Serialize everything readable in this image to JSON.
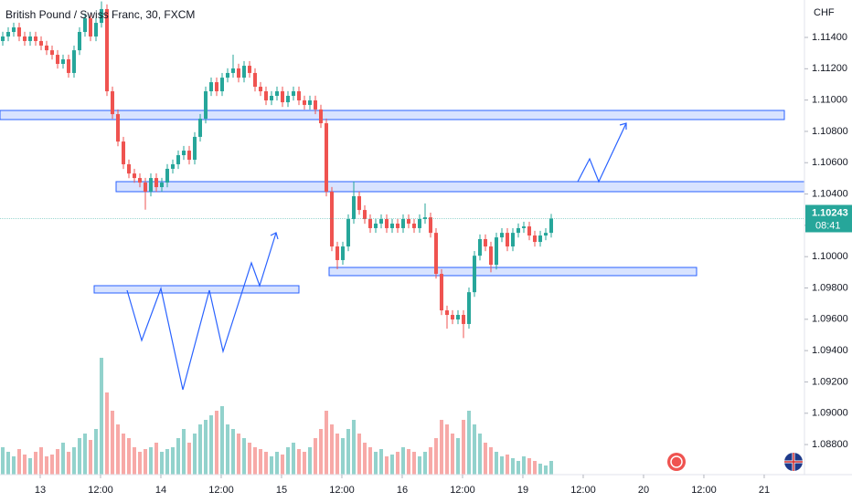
{
  "chart_data": {
    "type": "candlestick",
    "title": "British Pound / Swiss Franc, 30, FXCM",
    "currency": "CHF",
    "countdown": "08:41",
    "up_color": "#26a69a",
    "down_color": "#ef5350",
    "ylim": [
      1.08608,
      1.11639
    ],
    "yticks": [
      {
        "value": 1.114,
        "label": "1.11400"
      },
      {
        "value": 1.112,
        "label": "1.11200"
      },
      {
        "value": 1.11,
        "label": "1.11000"
      },
      {
        "value": 1.108,
        "label": "1.10800"
      },
      {
        "value": 1.106,
        "label": "1.10600"
      },
      {
        "value": 1.104,
        "label": "1.10400"
      },
      {
        "value": 1.102,
        "label": "1.10200"
      },
      {
        "value": 1.1,
        "label": "1.10000"
      },
      {
        "value": 1.098,
        "label": "1.09800"
      },
      {
        "value": 1.096,
        "label": "1.09600"
      },
      {
        "value": 1.094,
        "label": "1.09400"
      },
      {
        "value": 1.092,
        "label": "1.09200"
      },
      {
        "value": 1.09,
        "label": "1.09000"
      },
      {
        "value": 1.088,
        "label": "1.08800"
      }
    ],
    "xlim": [
      -0.5,
      146.17
    ],
    "xticks": [
      {
        "value": 6.83,
        "label": "13"
      },
      {
        "value": 17.83,
        "label": "12:00"
      },
      {
        "value": 28.83,
        "label": "14"
      },
      {
        "value": 39.83,
        "label": "12:00"
      },
      {
        "value": 50.83,
        "label": "15"
      },
      {
        "value": 61.83,
        "label": "12:00"
      },
      {
        "value": 72.83,
        "label": "16"
      },
      {
        "value": 83.83,
        "label": "12:00"
      },
      {
        "value": 94.83,
        "label": "19"
      },
      {
        "value": 105.83,
        "label": "12:00"
      },
      {
        "value": 116.83,
        "label": "20"
      },
      {
        "value": 127.83,
        "label": "12:00"
      },
      {
        "value": 138.83,
        "label": "21"
      }
    ],
    "open": [
      1.11377,
      1.11406,
      1.11435,
      1.11464,
      1.11406,
      1.11377,
      1.11406,
      1.11377,
      1.11348,
      1.11318,
      1.11289,
      1.11231,
      1.1126,
      1.11173,
      1.11318,
      1.11435,
      1.11522,
      1.11406,
      1.11493,
      1.11581,
      1.11056,
      1.1091,
      1.10735,
      1.1059,
      1.10531,
      1.10502,
      1.10473,
      1.10415,
      1.10502,
      1.10444,
      1.10473,
      1.10561,
      1.1059,
      1.10648,
      1.10677,
      1.10619,
      1.10765,
      1.10881,
      1.11056,
      1.11114,
      1.11056,
      1.11143,
      1.11173,
      1.11202,
      1.11143,
      1.11219,
      1.11173,
      1.11085,
      1.11056,
      1.10998,
      1.11027,
      1.11056,
      1.10986,
      1.11027,
      1.11056,
      1.10998,
      1.10969,
      1.10998,
      1.1094,
      1.10852,
      1.10415,
      1.10065,
      1.09978,
      1.10065,
      1.1024,
      1.10386,
      1.10298,
      1.1024,
      1.10182,
      1.10211,
      1.1024,
      1.10182,
      1.10211,
      1.10182,
      1.1024,
      1.10211,
      1.10182,
      1.1024,
      1.10251,
      1.10152,
      1.0989,
      1.09657,
      1.09628,
      1.09599,
      1.09628,
      1.0957,
      1.09773,
      1.10006,
      1.10112,
      1.10065,
      1.09948,
      1.10123,
      1.10152,
      1.10065,
      1.10152,
      1.10182,
      1.10193,
      1.10135,
      1.10094,
      1.10135,
      1.10152
    ],
    "high": [
      1.11436,
      1.11465,
      1.11494,
      1.11494,
      1.11436,
      1.11436,
      1.11436,
      1.11407,
      1.11378,
      1.11348,
      1.11319,
      1.1129,
      1.1129,
      1.11348,
      1.11465,
      1.11552,
      1.11552,
      1.11523,
      1.1163,
      1.11611,
      1.11086,
      1.1094,
      1.10765,
      1.1062,
      1.10561,
      1.10532,
      1.10503,
      1.10532,
      1.10532,
      1.10503,
      1.10591,
      1.1062,
      1.10678,
      1.10707,
      1.10707,
      1.10795,
      1.10911,
      1.11086,
      1.11144,
      1.11144,
      1.11173,
      1.11203,
      1.1129,
      1.11232,
      1.11249,
      1.11249,
      1.11203,
      1.11115,
      1.11086,
      1.11057,
      1.11086,
      1.11086,
      1.11057,
      1.11086,
      1.11086,
      1.11028,
      1.11028,
      1.11028,
      1.1097,
      1.10882,
      1.10445,
      1.10095,
      1.10095,
      1.1027,
      1.1048,
      1.10416,
      1.10328,
      1.1027,
      1.10241,
      1.1027,
      1.1027,
      1.10241,
      1.10241,
      1.1027,
      1.1027,
      1.10241,
      1.1027,
      1.1034,
      1.10281,
      1.10182,
      1.0992,
      1.09687,
      1.09658,
      1.09658,
      1.09658,
      1.09803,
      1.10036,
      1.10142,
      1.10142,
      1.10095,
      1.10153,
      1.10182,
      1.10182,
      1.10182,
      1.10212,
      1.10223,
      1.10223,
      1.10165,
      1.10165,
      1.10182,
      1.10273
    ],
    "low": [
      1.11347,
      1.11376,
      1.11405,
      1.11376,
      1.11347,
      1.11347,
      1.11347,
      1.11318,
      1.11288,
      1.11259,
      1.11201,
      1.11201,
      1.11143,
      1.11143,
      1.11288,
      1.11405,
      1.11376,
      1.11376,
      1.11463,
      1.11026,
      1.1088,
      1.10705,
      1.1056,
      1.10501,
      1.10472,
      1.10443,
      1.103,
      1.10385,
      1.10414,
      1.10414,
      1.10443,
      1.10531,
      1.1056,
      1.10618,
      1.10589,
      1.10589,
      1.10735,
      1.10851,
      1.11026,
      1.11026,
      1.11026,
      1.11113,
      1.11143,
      1.11113,
      1.11113,
      1.11143,
      1.11055,
      1.11026,
      1.10968,
      1.10968,
      1.10997,
      1.10956,
      1.10956,
      1.10997,
      1.10968,
      1.10939,
      1.10939,
      1.1091,
      1.10822,
      1.10385,
      1.10035,
      1.0992,
      1.09948,
      1.10035,
      1.1021,
      1.10268,
      1.1021,
      1.10152,
      1.10152,
      1.10181,
      1.10152,
      1.10152,
      1.10152,
      1.10152,
      1.10181,
      1.10152,
      1.10152,
      1.1021,
      1.10122,
      1.0986,
      1.09627,
      1.0954,
      1.09569,
      1.09569,
      1.0948,
      1.0954,
      1.09743,
      1.09976,
      1.10035,
      1.099,
      1.09918,
      1.10093,
      1.10035,
      1.10035,
      1.10122,
      1.10152,
      1.10105,
      1.10064,
      1.10064,
      1.10105,
      1.10122
    ],
    "close": [
      1.11406,
      1.11435,
      1.11464,
      1.11406,
      1.11377,
      1.11406,
      1.11377,
      1.11348,
      1.11318,
      1.11289,
      1.11231,
      1.1126,
      1.11173,
      1.11318,
      1.11435,
      1.11522,
      1.11406,
      1.11493,
      1.11581,
      1.11056,
      1.1091,
      1.10735,
      1.1059,
      1.10531,
      1.10502,
      1.10473,
      1.10415,
      1.10502,
      1.10444,
      1.10473,
      1.10561,
      1.1059,
      1.10648,
      1.10677,
      1.10619,
      1.10765,
      1.10881,
      1.11056,
      1.11114,
      1.11056,
      1.11143,
      1.11173,
      1.11202,
      1.11143,
      1.11219,
      1.11173,
      1.11085,
      1.11056,
      1.10998,
      1.11027,
      1.11056,
      1.10986,
      1.11027,
      1.11056,
      1.10998,
      1.10969,
      1.10998,
      1.1094,
      1.10852,
      1.10415,
      1.10065,
      1.09978,
      1.10065,
      1.1024,
      1.10386,
      1.10298,
      1.1024,
      1.10182,
      1.10211,
      1.1024,
      1.10182,
      1.10211,
      1.10182,
      1.1024,
      1.10211,
      1.10182,
      1.1024,
      1.10251,
      1.10152,
      1.0989,
      1.09657,
      1.09628,
      1.09599,
      1.09628,
      1.0957,
      1.09773,
      1.10006,
      1.10112,
      1.10065,
      1.09948,
      1.10123,
      1.10152,
      1.10065,
      1.10152,
      1.10182,
      1.10193,
      1.10135,
      1.10094,
      1.10135,
      1.10152,
      1.10243
    ],
    "volume": [
      30,
      25,
      20,
      28,
      22,
      18,
      25,
      30,
      20,
      22,
      28,
      35,
      25,
      30,
      40,
      45,
      38,
      50,
      128,
      90,
      70,
      55,
      45,
      40,
      30,
      25,
      28,
      30,
      35,
      25,
      28,
      30,
      40,
      50,
      35,
      45,
      55,
      60,
      65,
      70,
      75,
      55,
      50,
      45,
      40,
      35,
      30,
      28,
      25,
      20,
      25,
      22,
      30,
      35,
      28,
      25,
      30,
      40,
      50,
      70,
      55,
      45,
      40,
      50,
      60,
      45,
      35,
      30,
      25,
      28,
      20,
      22,
      25,
      30,
      28,
      25,
      20,
      25,
      30,
      40,
      60,
      55,
      45,
      40,
      60,
      70,
      55,
      45,
      35,
      30,
      25,
      20,
      22,
      18,
      15,
      20,
      18,
      15,
      12,
      10,
      15
    ]
  }
}
